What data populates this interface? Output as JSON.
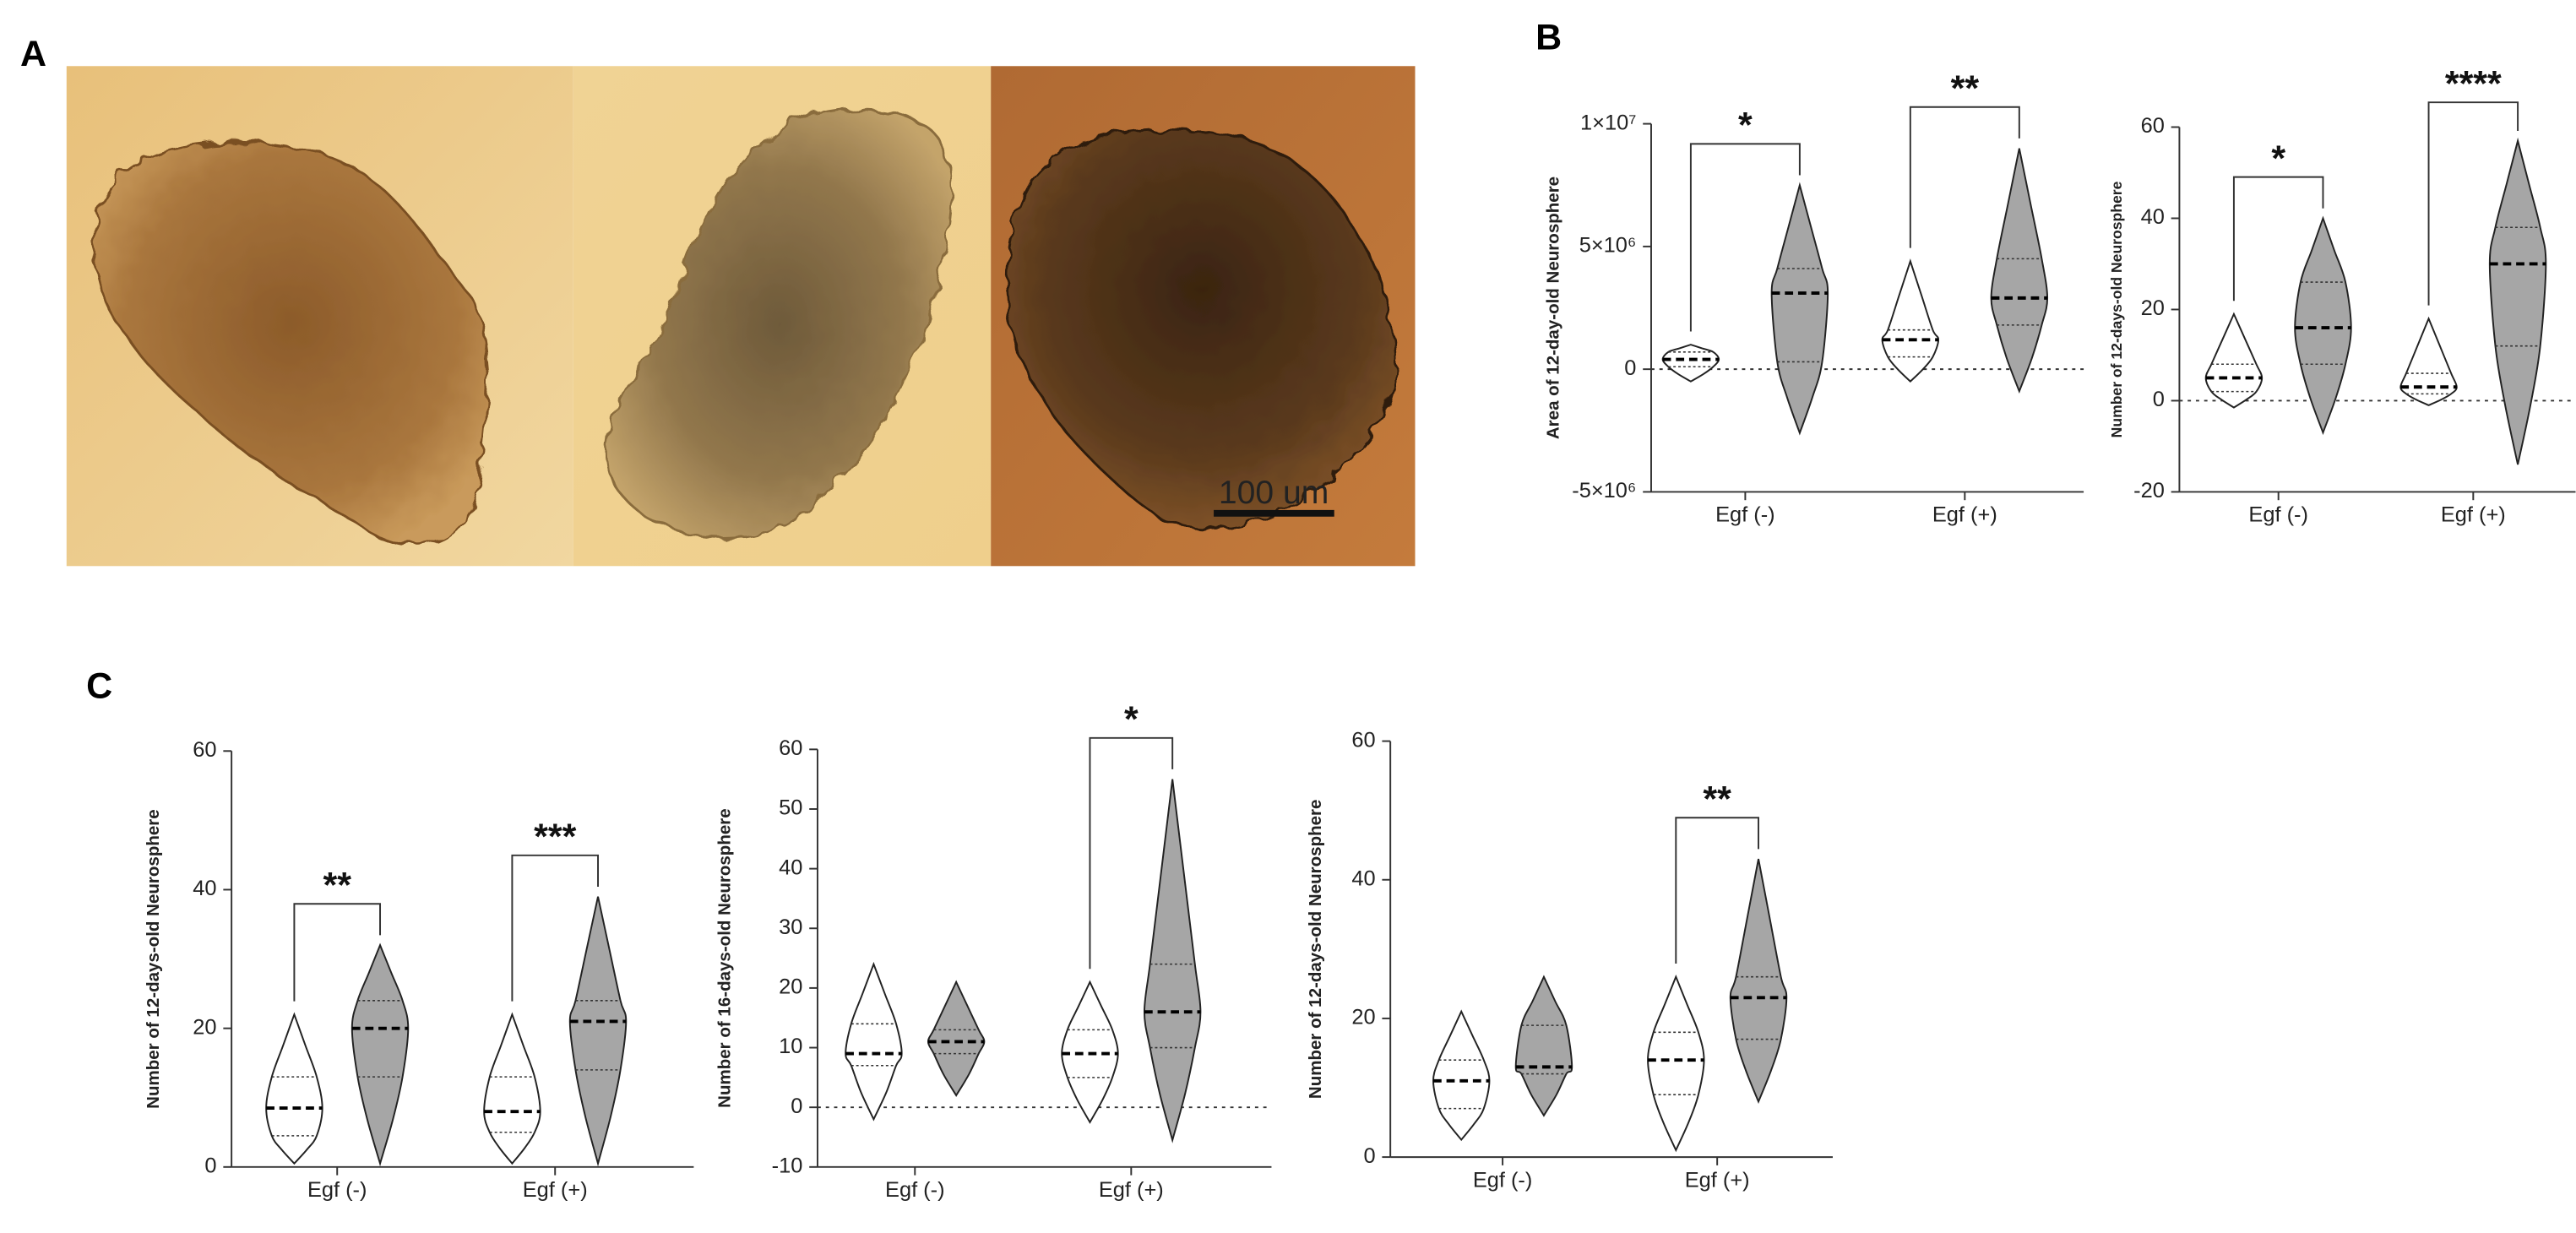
{
  "panel_labels": [
    "A",
    "B",
    "C"
  ],
  "scale_bar": "100 um",
  "chart_data": [
    {
      "type": "violin",
      "ylabel": "Area of 12-day-old Neurosphere",
      "categories": [
        "Egf (-)",
        "Egf (+)"
      ],
      "ylim": [
        -5000000,
        10000000
      ],
      "yticks": [
        {
          "value": -5000000,
          "label": "-5×10⁶"
        },
        0,
        {
          "value": 5000000,
          "label": "5×10⁶"
        },
        {
          "value": 10000000,
          "label": "1×10⁷"
        }
      ],
      "zero_line": true,
      "series": [
        {
          "color": "#ffffff",
          "min": [
            -500000,
            -500000
          ],
          "q1": [
            100000,
            500000
          ],
          "median": [
            400000,
            1200000
          ],
          "q3": [
            700000,
            1600000
          ],
          "max": [
            1000000,
            4400000
          ]
        },
        {
          "color": "#a6a6a6",
          "min": [
            -2600000,
            -900000
          ],
          "q1": [
            300000,
            1800000
          ],
          "median": [
            3100000,
            2900000
          ],
          "q3": [
            4100000,
            4500000
          ],
          "max": [
            7500000,
            9000000
          ]
        }
      ],
      "annotations": [
        {
          "category": 0,
          "label": "*"
        },
        {
          "category": 1,
          "label": "**"
        }
      ]
    },
    {
      "type": "violin",
      "ylabel": "Number of 12-days-old Neurosphere",
      "categories": [
        "Egf (-)",
        "Egf (+)"
      ],
      "ylim": [
        -20,
        60
      ],
      "yticks": [
        -20,
        0,
        20,
        40,
        60
      ],
      "zero_line": true,
      "series": [
        {
          "color": "#ffffff",
          "min": [
            -1.5,
            -1
          ],
          "q1": [
            2,
            1.5
          ],
          "median": [
            5,
            3
          ],
          "q3": [
            8,
            6
          ],
          "max": [
            19,
            18
          ]
        },
        {
          "color": "#a6a6a6",
          "min": [
            -7,
            -14
          ],
          "q1": [
            8,
            12
          ],
          "median": [
            16,
            30
          ],
          "q3": [
            26,
            38
          ],
          "max": [
            40,
            57
          ]
        }
      ],
      "annotations": [
        {
          "category": 0,
          "label": "*"
        },
        {
          "category": 1,
          "label": "****"
        }
      ]
    },
    {
      "type": "violin",
      "ylabel": "Number of 12-days-old Neurosphere",
      "categories": [
        "Egf (-)",
        "Egf (+)"
      ],
      "ylim": [
        0,
        60
      ],
      "yticks": [
        0,
        20,
        40,
        60
      ],
      "zero_line": false,
      "series": [
        {
          "color": "#ffffff",
          "min": [
            0.5,
            0.5
          ],
          "q1": [
            4.5,
            5
          ],
          "median": [
            8.5,
            8
          ],
          "q3": [
            13,
            13
          ],
          "max": [
            22,
            22
          ]
        },
        {
          "color": "#a6a6a6",
          "min": [
            0.5,
            0.5
          ],
          "q1": [
            13,
            14
          ],
          "median": [
            20,
            21
          ],
          "q3": [
            24,
            24
          ],
          "max": [
            32,
            39
          ]
        }
      ],
      "annotations": [
        {
          "category": 0,
          "label": "**"
        },
        {
          "category": 1,
          "label": "***"
        }
      ]
    },
    {
      "type": "violin",
      "ylabel": "Number of 16-days-old Neurosphere",
      "categories": [
        "Egf (-)",
        "Egf (+)"
      ],
      "ylim": [
        -10,
        60
      ],
      "yticks": [
        -10,
        0,
        10,
        20,
        30,
        40,
        50,
        60
      ],
      "zero_line": true,
      "series": [
        {
          "color": "#ffffff",
          "min": [
            -2,
            -2.5
          ],
          "q1": [
            7,
            5
          ],
          "median": [
            9,
            9
          ],
          "q3": [
            14,
            13
          ],
          "max": [
            24,
            21
          ]
        },
        {
          "color": "#a6a6a6",
          "min": [
            2,
            -5.5
          ],
          "q1": [
            9,
            10
          ],
          "median": [
            11,
            16
          ],
          "q3": [
            13,
            24
          ],
          "max": [
            21,
            55
          ]
        }
      ],
      "annotations": [
        {
          "category": 1,
          "label": "*"
        }
      ]
    },
    {
      "type": "violin",
      "ylabel": "Number of 12-days-old Neurosphere",
      "categories": [
        "Egf (-)",
        "Egf (+)"
      ],
      "ylim": [
        0,
        60
      ],
      "yticks": [
        0,
        20,
        40,
        60
      ],
      "zero_line": false,
      "series": [
        {
          "color": "#ffffff",
          "min": [
            2.5,
            1
          ],
          "q1": [
            7,
            9
          ],
          "median": [
            11,
            14
          ],
          "q3": [
            14,
            18
          ],
          "max": [
            21,
            26
          ]
        },
        {
          "color": "#a6a6a6",
          "min": [
            6,
            8
          ],
          "q1": [
            12,
            17
          ],
          "median": [
            13,
            23
          ],
          "q3": [
            19,
            26
          ],
          "max": [
            26,
            43
          ]
        }
      ],
      "annotations": [
        {
          "category": 1,
          "label": "**"
        }
      ]
    }
  ]
}
